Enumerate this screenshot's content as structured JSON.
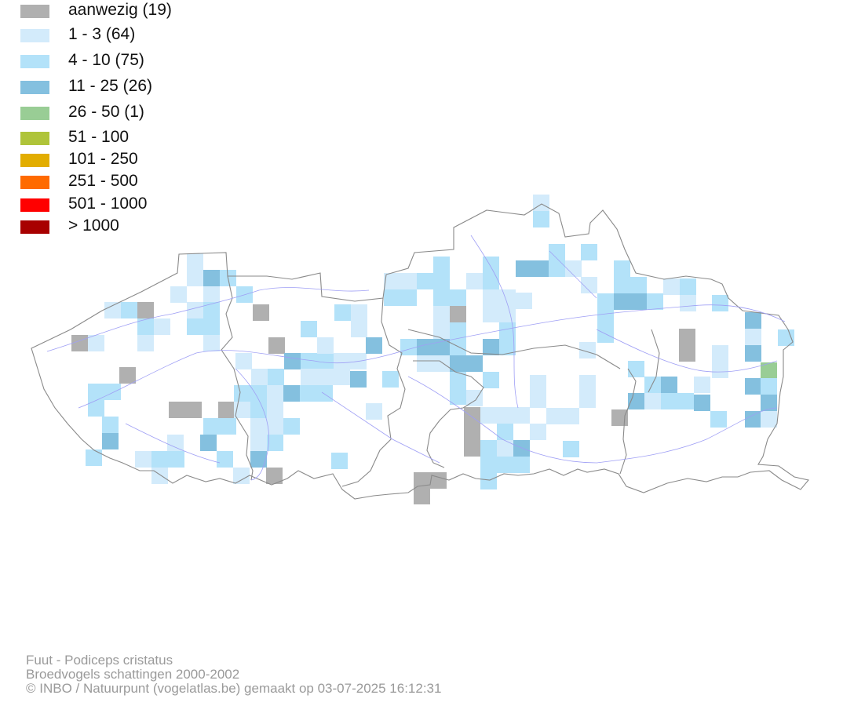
{
  "legend": {
    "items": [
      {
        "label": "aanwezig (19)",
        "color": "#b0b0b0"
      },
      {
        "label": "1 - 3 (64)",
        "color": "#d3ebfb"
      },
      {
        "label": "4 - 10 (75)",
        "color": "#b3e2f9"
      },
      {
        "label": "11 - 25 (26)",
        "color": "#84c0df"
      },
      {
        "label": "26 - 50 (1)",
        "color": "#99cd95"
      },
      {
        "label": "51 - 100",
        "color": "#afc43a"
      },
      {
        "label": "101 - 250",
        "color": "#e2ad00"
      },
      {
        "label": "251 - 500",
        "color": "#ff6a00"
      },
      {
        "label": "501 - 1000",
        "color": "#ff0000"
      },
      {
        "label": "> 1000",
        "color": "#a80000"
      }
    ]
  },
  "map": {
    "border_color": "#8a8a8a",
    "river_color": "#9f9ff5",
    "category_legend_index": {
      "P": 0,
      "L": 1,
      "M": 2,
      "D": 3,
      "G": 4
    }
  },
  "footer": {
    "species": "Fuut - Podiceps cristatus",
    "survey": "Broedvogels schattingen 2000-2002",
    "credit": "© INBO / Natuurpunt (vogelatlas.be) gemaakt op 03-07-2025 16:12:31"
  }
}
